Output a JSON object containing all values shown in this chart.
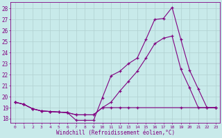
{
  "background_color": "#c8eaea",
  "line_color": "#800080",
  "grid_color": "#b0d0d0",
  "xlabel": "Windchill (Refroidissement éolien,°C)",
  "ylabel_ticks": [
    18,
    19,
    20,
    21,
    22,
    23,
    24,
    25,
    26,
    27,
    28
  ],
  "xlim": [
    -0.5,
    23.5
  ],
  "ylim": [
    17.6,
    28.6
  ],
  "line1_x": [
    0,
    1,
    2,
    3,
    4,
    5,
    6,
    7,
    8,
    9,
    10,
    11,
    12,
    13,
    14,
    15,
    16,
    17,
    18,
    19,
    20,
    21,
    22,
    23
  ],
  "line1_y": [
    19.5,
    19.3,
    18.9,
    18.7,
    18.65,
    18.6,
    18.55,
    17.85,
    17.85,
    17.85,
    19.9,
    21.9,
    22.3,
    23.0,
    23.5,
    25.2,
    27.0,
    27.1,
    28.1,
    25.2,
    22.4,
    20.7,
    19.0,
    19.0
  ],
  "line2_x": [
    0,
    1,
    2,
    3,
    4,
    5,
    6,
    7,
    8,
    9,
    10,
    11,
    12,
    13,
    14,
    15,
    16,
    17,
    18,
    19,
    20,
    21,
    22,
    23
  ],
  "line2_y": [
    19.5,
    19.3,
    18.9,
    18.7,
    18.65,
    18.6,
    18.55,
    18.35,
    18.35,
    18.35,
    19.0,
    19.5,
    20.5,
    21.4,
    22.3,
    23.5,
    24.8,
    25.3,
    25.5,
    22.5,
    20.8,
    19.0,
    19.0,
    19.0
  ],
  "line3_x": [
    0,
    1,
    2,
    3,
    4,
    5,
    6,
    7,
    8,
    9,
    10,
    11,
    12,
    13,
    14,
    19,
    23
  ],
  "line3_y": [
    19.5,
    19.3,
    18.9,
    18.7,
    18.65,
    18.6,
    18.55,
    18.35,
    18.35,
    18.35,
    19.0,
    19.0,
    19.0,
    19.0,
    19.0,
    19.0,
    19.0
  ],
  "xtick_labels": [
    "0",
    "1",
    "2",
    "3",
    "4",
    "5",
    "6",
    "7",
    "8",
    "9",
    "10",
    "11",
    "12",
    "13",
    "14",
    "15",
    "16",
    "17",
    "18",
    "19",
    "20",
    "21",
    "22",
    "23"
  ]
}
